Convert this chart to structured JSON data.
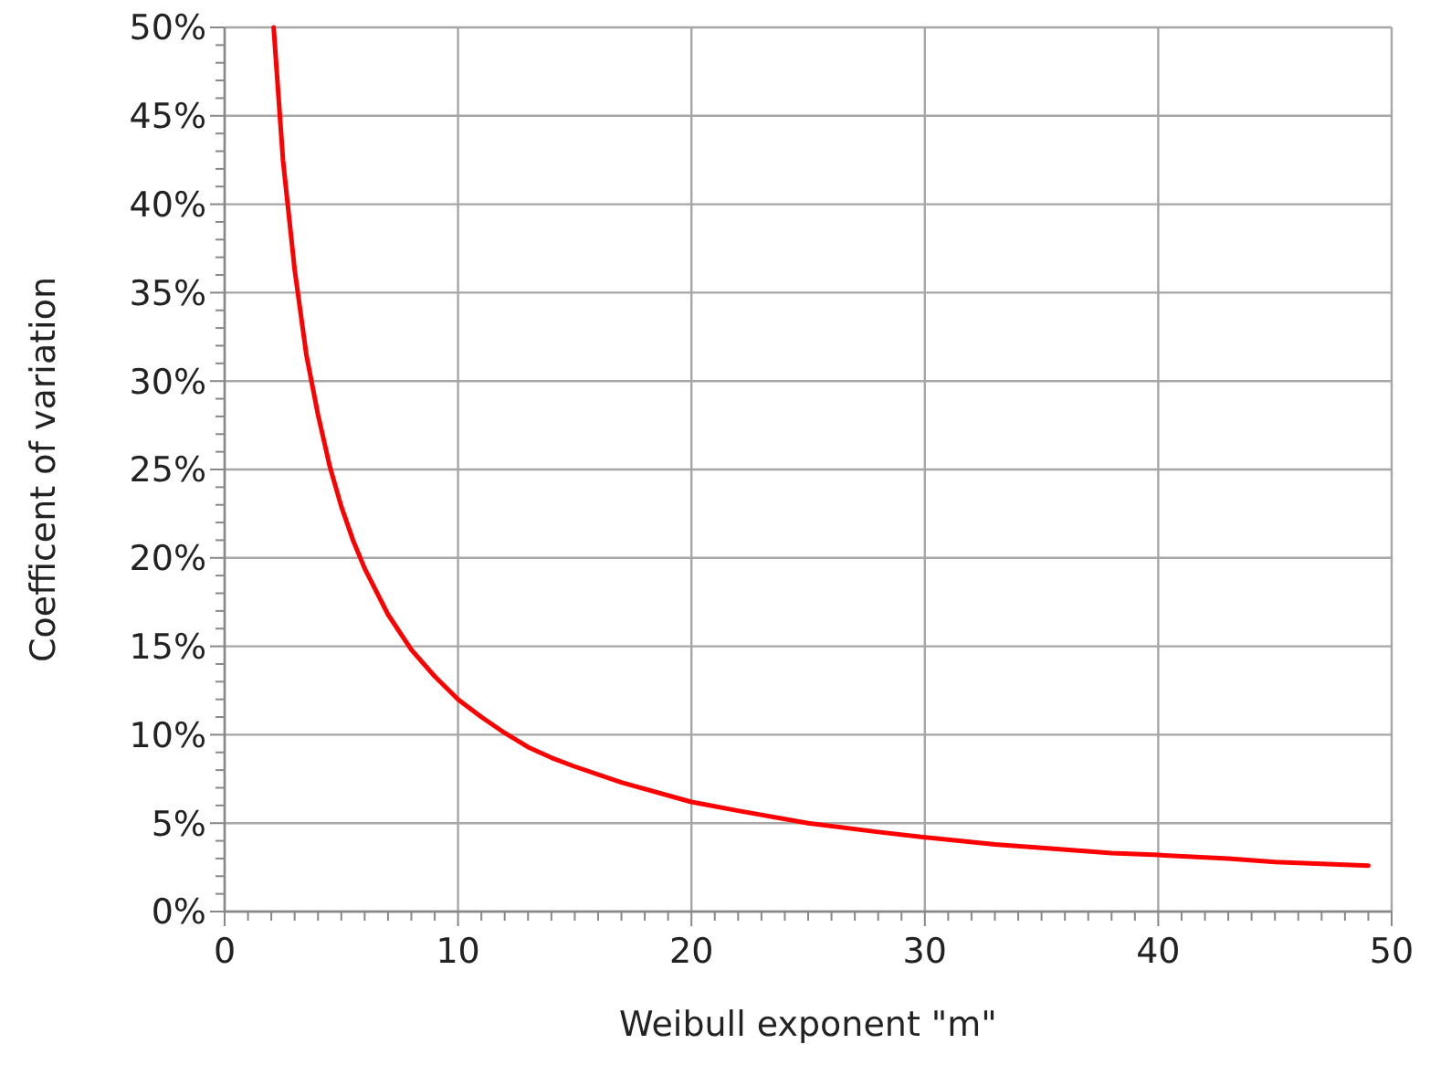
{
  "chart_data": {
    "type": "line",
    "xlabel": "Weibull exponent \"m\"",
    "ylabel": "Coefficent of variation",
    "x": [
      2.1,
      2.5,
      3,
      3.5,
      4,
      4.5,
      5,
      5.5,
      6,
      7,
      8,
      9,
      10,
      11,
      12,
      13,
      14,
      15,
      17,
      20,
      22,
      25,
      28,
      30,
      33,
      35,
      38,
      40,
      43,
      45,
      47,
      49
    ],
    "series": [
      {
        "color": "#ff0000",
        "values": [
          50,
          42.5,
          36.3,
          31.5,
          28.1,
          25.2,
          22.9,
          21,
          19.4,
          16.8,
          14.8,
          13.3,
          12,
          11,
          10.1,
          9.3,
          8.7,
          8.2,
          7.3,
          6.2,
          5.7,
          5,
          4.5,
          4.2,
          3.8,
          3.6,
          3.3,
          3.2,
          3,
          2.8,
          2.7,
          2.6
        ]
      }
    ],
    "xlim": [
      0,
      50
    ],
    "ylim": [
      0,
      50
    ],
    "xticks": [
      0,
      {
        "value": 1,
        "label": null
      },
      {
        "value": 2,
        "label": null
      },
      {
        "value": 3,
        "label": null
      },
      {
        "value": 4,
        "label": null
      },
      {
        "value": 5,
        "label": null
      },
      {
        "value": 6,
        "label": null
      },
      {
        "value": 7,
        "label": null
      },
      {
        "value": 8,
        "label": null
      },
      {
        "value": 9,
        "label": null
      },
      10,
      {
        "value": 11,
        "label": null
      },
      {
        "value": 12,
        "label": null
      },
      {
        "value": 13,
        "label": null
      },
      {
        "value": 14,
        "label": null
      },
      {
        "value": 15,
        "label": null
      },
      {
        "value": 16,
        "label": null
      },
      {
        "value": 17,
        "label": null
      },
      {
        "value": 18,
        "label": null
      },
      {
        "value": 19,
        "label": null
      },
      20,
      {
        "value": 21,
        "label": null
      },
      {
        "value": 22,
        "label": null
      },
      {
        "value": 23,
        "label": null
      },
      {
        "value": 24,
        "label": null
      },
      {
        "value": 25,
        "label": null
      },
      {
        "value": 26,
        "label": null
      },
      {
        "value": 27,
        "label": null
      },
      {
        "value": 28,
        "label": null
      },
      {
        "value": 29,
        "label": null
      },
      30,
      {
        "value": 31,
        "label": null
      },
      {
        "value": 32,
        "label": null
      },
      {
        "value": 33,
        "label": null
      },
      {
        "value": 34,
        "label": null
      },
      {
        "value": 35,
        "label": null
      },
      {
        "value": 36,
        "label": null
      },
      {
        "value": 37,
        "label": null
      },
      {
        "value": 38,
        "label": null
      },
      {
        "value": 39,
        "label": null
      },
      40,
      {
        "value": 41,
        "label": null
      },
      {
        "value": 42,
        "label": null
      },
      {
        "value": 43,
        "label": null
      },
      {
        "value": 44,
        "label": null
      },
      {
        "value": 45,
        "label": null
      },
      {
        "value": 46,
        "label": null
      },
      {
        "value": 47,
        "label": null
      },
      {
        "value": 48,
        "label": null
      },
      {
        "value": 49,
        "label": null
      },
      50
    ],
    "yticks": [
      {
        "value": 0,
        "label": "0%"
      },
      {
        "value": 1,
        "label": null
      },
      {
        "value": 2,
        "label": null
      },
      {
        "value": 3,
        "label": null
      },
      {
        "value": 4,
        "label": null
      },
      {
        "value": 5,
        "label": "5%"
      },
      {
        "value": 6,
        "label": null
      },
      {
        "value": 7,
        "label": null
      },
      {
        "value": 8,
        "label": null
      },
      {
        "value": 9,
        "label": null
      },
      {
        "value": 10,
        "label": "10%"
      },
      {
        "value": 11,
        "label": null
      },
      {
        "value": 12,
        "label": null
      },
      {
        "value": 13,
        "label": null
      },
      {
        "value": 14,
        "label": null
      },
      {
        "value": 15,
        "label": "15%"
      },
      {
        "value": 16,
        "label": null
      },
      {
        "value": 17,
        "label": null
      },
      {
        "value": 18,
        "label": null
      },
      {
        "value": 19,
        "label": null
      },
      {
        "value": 20,
        "label": "20%"
      },
      {
        "value": 21,
        "label": null
      },
      {
        "value": 22,
        "label": null
      },
      {
        "value": 23,
        "label": null
      },
      {
        "value": 24,
        "label": null
      },
      {
        "value": 25,
        "label": "25%"
      },
      {
        "value": 26,
        "label": null
      },
      {
        "value": 27,
        "label": null
      },
      {
        "value": 28,
        "label": null
      },
      {
        "value": 29,
        "label": null
      },
      {
        "value": 30,
        "label": "30%"
      },
      {
        "value": 31,
        "label": null
      },
      {
        "value": 32,
        "label": null
      },
      {
        "value": 33,
        "label": null
      },
      {
        "value": 34,
        "label": null
      },
      {
        "value": 35,
        "label": "35%"
      },
      {
        "value": 36,
        "label": null
      },
      {
        "value": 37,
        "label": null
      },
      {
        "value": 38,
        "label": null
      },
      {
        "value": 39,
        "label": null
      },
      {
        "value": 40,
        "label": "40%"
      },
      {
        "value": 41,
        "label": null
      },
      {
        "value": 42,
        "label": null
      },
      {
        "value": 43,
        "label": null
      },
      {
        "value": 44,
        "label": null
      },
      {
        "value": 45,
        "label": "45%"
      },
      {
        "value": 46,
        "label": null
      },
      {
        "value": 47,
        "label": null
      },
      {
        "value": 48,
        "label": null
      },
      {
        "value": 49,
        "label": null
      },
      {
        "value": 50,
        "label": "50%"
      }
    ],
    "grid": true
  }
}
